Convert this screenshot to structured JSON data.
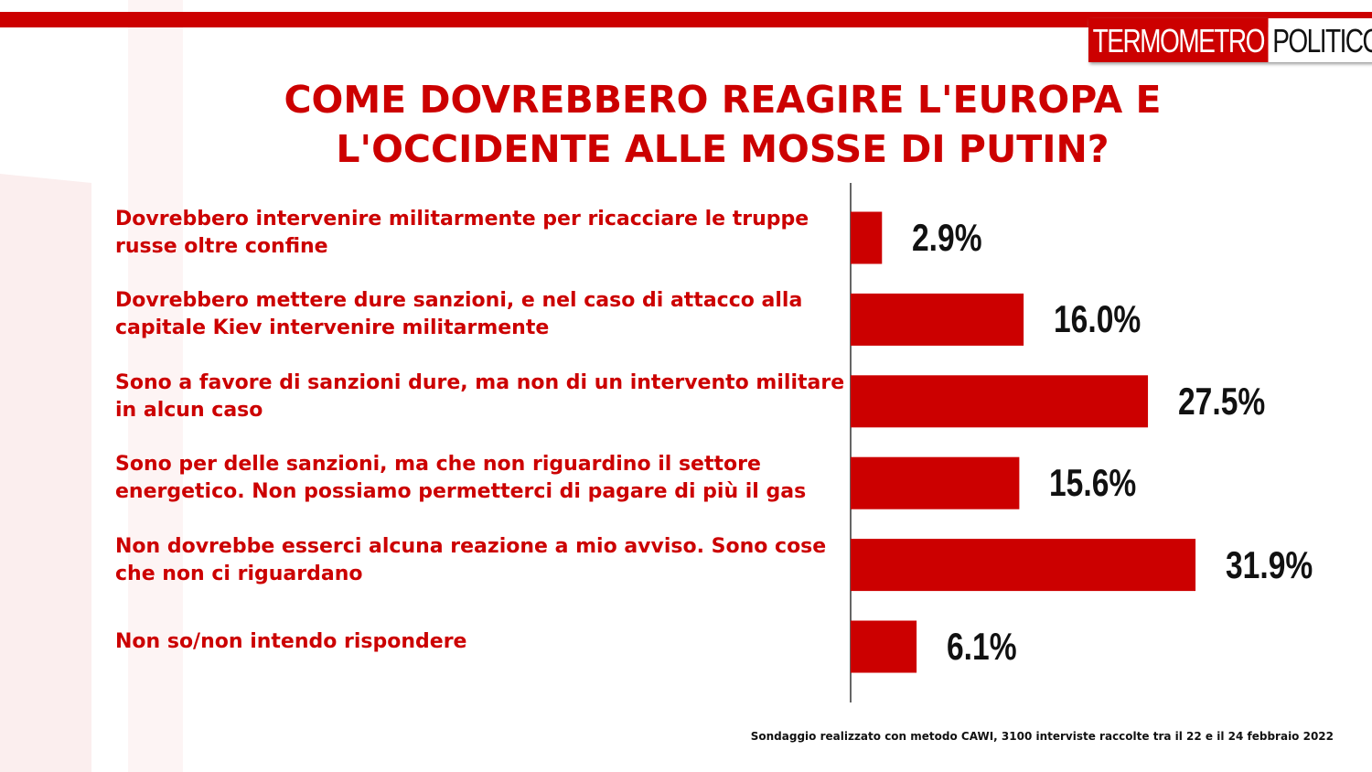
{
  "logo": {
    "part1": "TERMOMETRO",
    "part2": "POLITICO"
  },
  "chart_data": {
    "type": "bar",
    "orientation": "horizontal",
    "title": "COME DOVREBBERO REAGIRE L'EUROPA E L'OCCIDENTE ALLE MOSSE DI PUTIN?",
    "categories": [
      "Dovrebbero intervenire militarmente per ricacciare le truppe russe oltre confine",
      "Dovrebbero mettere dure sanzioni, e nel caso di attacco alla capitale Kiev intervenire militarmente",
      "Sono a favore di sanzioni dure, ma non di un intervento militare in alcun caso",
      "Sono per delle sanzioni, ma che non riguardino il settore energetico. Non possiamo permetterci di pagare di più il gas",
      "Non dovrebbe esserci alcuna reazione a mio avviso. Sono cose che non ci riguardano",
      "Non so/non intendo rispondere"
    ],
    "values": [
      2.9,
      16.0,
      27.5,
      15.6,
      31.9,
      6.1
    ],
    "value_labels": [
      "2.9%",
      "16.0%",
      "27.5%",
      "15.6%",
      "31.9%",
      "6.1%"
    ],
    "color": "#cc0000",
    "note": "Sondaggio realizzato con metodo CAWI, 3100 interviste raccolte tra il 22 e il 24 febbraio 2022"
  }
}
